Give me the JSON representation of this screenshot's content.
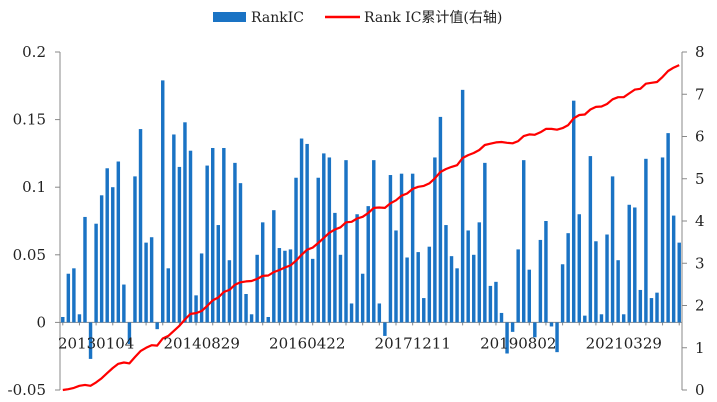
{
  "chart_data": {
    "type": "bar+line",
    "title": "",
    "legend": {
      "position": "top-center",
      "bar_label": "RankIC",
      "line_label": "Rank IC累计值(右轴)"
    },
    "colors": {
      "bar": "#1a73c4",
      "line": "#ff0000",
      "axis": "#888888"
    },
    "x_tick_labels": [
      "20130104",
      "20140829",
      "20160422",
      "20171211",
      "20190802",
      "20210329"
    ],
    "x_tick_indices": [
      0,
      19,
      38,
      57,
      76,
      95
    ],
    "y_left": {
      "min": -0.05,
      "max": 0.2,
      "ticks": [
        -0.05,
        0,
        0.05,
        0.1,
        0.15,
        0.2
      ],
      "tick_labels": [
        "-0.05",
        "0",
        "0.05",
        "0.1",
        "0.15",
        "0.2"
      ]
    },
    "y_right": {
      "min": 0,
      "max": 8,
      "ticks": [
        0,
        1,
        2,
        3,
        4,
        5,
        6,
        7,
        8
      ],
      "tick_labels": [
        "0",
        "1",
        "2",
        "3",
        "4",
        "5",
        "6",
        "7",
        "8"
      ]
    },
    "series": [
      {
        "name": "RankIC",
        "kind": "bar",
        "axis": "left",
        "values": [
          0.004,
          0.036,
          0.04,
          0.006,
          0.078,
          -0.027,
          0.073,
          0.094,
          0.114,
          0.1,
          0.119,
          0.028,
          -0.016,
          0.108,
          0.143,
          0.059,
          0.063,
          -0.005,
          0.179,
          0.04,
          0.139,
          0.115,
          0.148,
          0.127,
          0.02,
          0.051,
          0.116,
          0.129,
          0.072,
          0.129,
          0.046,
          0.118,
          0.103,
          0.021,
          0.006,
          0.05,
          0.074,
          0.004,
          0.083,
          0.055,
          0.053,
          0.054,
          0.107,
          0.136,
          0.132,
          0.047,
          0.107,
          0.125,
          0.122,
          0.081,
          0.05,
          0.12,
          0.014,
          0.08,
          0.036,
          0.086,
          0.12,
          0.014,
          -0.01,
          0.109,
          0.068,
          0.11,
          0.048,
          0.11,
          0.052,
          0.018,
          0.056,
          0.122,
          0.152,
          0.072,
          0.049,
          0.04,
          0.172,
          0.068,
          0.05,
          0.074,
          0.118,
          0.027,
          0.03,
          0.007,
          -0.023,
          -0.007,
          0.054,
          0.12,
          0.039,
          -0.011,
          0.061,
          0.075,
          -0.003,
          -0.022,
          0.043,
          0.066,
          0.164,
          0.08,
          0.005,
          0.123,
          0.06,
          0.006,
          0.065,
          0.108,
          0.046,
          0.006,
          0.087,
          0.085,
          0.024,
          0.121,
          0.018,
          0.022,
          0.122,
          0.14,
          0.079,
          0.059
        ]
      },
      {
        "name": "Rank IC累计值(右轴)",
        "kind": "line",
        "axis": "right",
        "values": [
          0.0,
          0.02,
          0.05,
          0.1,
          0.12,
          0.1,
          0.18,
          0.28,
          0.4,
          0.52,
          0.62,
          0.65,
          0.63,
          0.78,
          0.92,
          1.0,
          1.06,
          1.05,
          1.22,
          1.28,
          1.4,
          1.52,
          1.67,
          1.8,
          1.82,
          1.87,
          1.99,
          2.12,
          2.19,
          2.32,
          2.37,
          2.49,
          2.55,
          2.57,
          2.58,
          2.63,
          2.7,
          2.71,
          2.79,
          2.84,
          2.9,
          2.95,
          3.06,
          3.2,
          3.32,
          3.37,
          3.48,
          3.6,
          3.72,
          3.8,
          3.85,
          3.97,
          3.98,
          4.06,
          4.1,
          4.19,
          4.31,
          4.32,
          4.31,
          4.42,
          4.49,
          4.6,
          4.65,
          4.76,
          4.81,
          4.83,
          4.89,
          5.01,
          5.16,
          5.23,
          5.28,
          5.32,
          5.49,
          5.56,
          5.61,
          5.68,
          5.8,
          5.83,
          5.86,
          5.87,
          5.85,
          5.84,
          5.89,
          6.01,
          6.05,
          6.04,
          6.1,
          6.18,
          6.18,
          6.16,
          6.2,
          6.27,
          6.43,
          6.51,
          6.52,
          6.64,
          6.7,
          6.71,
          6.77,
          6.88,
          6.93,
          6.93,
          7.02,
          7.11,
          7.13,
          7.25,
          7.27,
          7.29,
          7.41,
          7.55,
          7.63,
          7.69
        ]
      }
    ]
  }
}
